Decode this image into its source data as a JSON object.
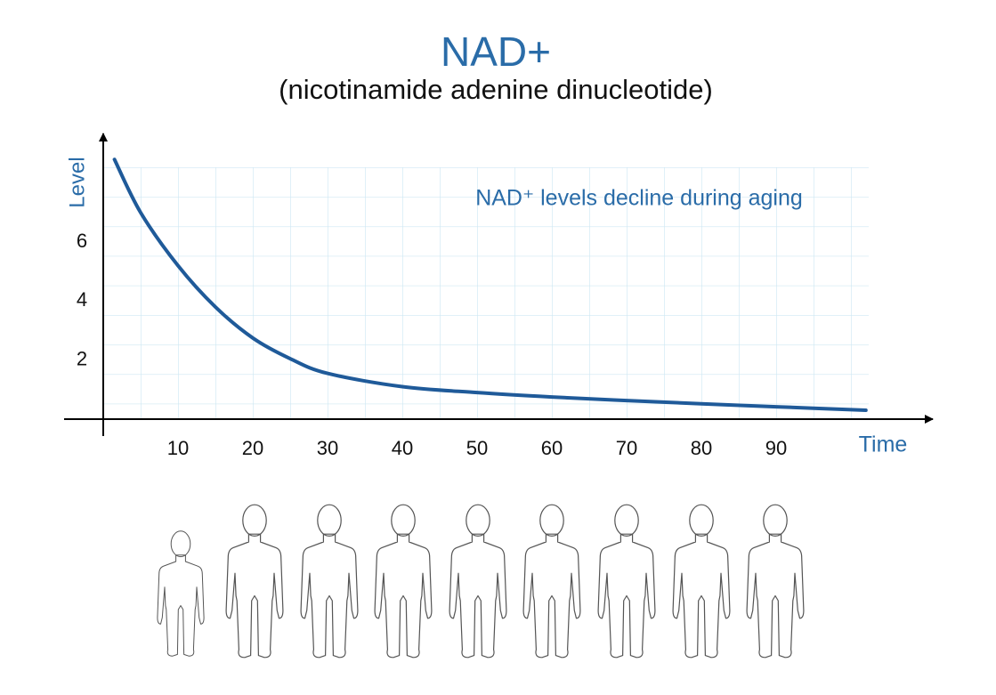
{
  "chart_data": {
    "type": "line",
    "title": "NAD+",
    "subtitle": "(nicotinamide adenine dinucleotide)",
    "y_label": "Level",
    "x_label": "Time",
    "annotation": "NAD⁺ levels decline during aging",
    "x": [
      1.5,
      5,
      10,
      15,
      20,
      25,
      30,
      40,
      50,
      60,
      70,
      80,
      90,
      102
    ],
    "values": [
      8.8,
      7.0,
      5.2,
      3.8,
      2.75,
      2.05,
      1.55,
      1.1,
      0.9,
      0.75,
      0.63,
      0.52,
      0.42,
      0.3
    ],
    "color": "#1f5a99",
    "xlim": [
      0,
      110
    ],
    "ylim": [
      0,
      9.8
    ],
    "xticks": [
      10,
      20,
      30,
      40,
      50,
      60,
      70,
      80,
      90
    ],
    "yticks": [
      2,
      4,
      6
    ]
  }
}
